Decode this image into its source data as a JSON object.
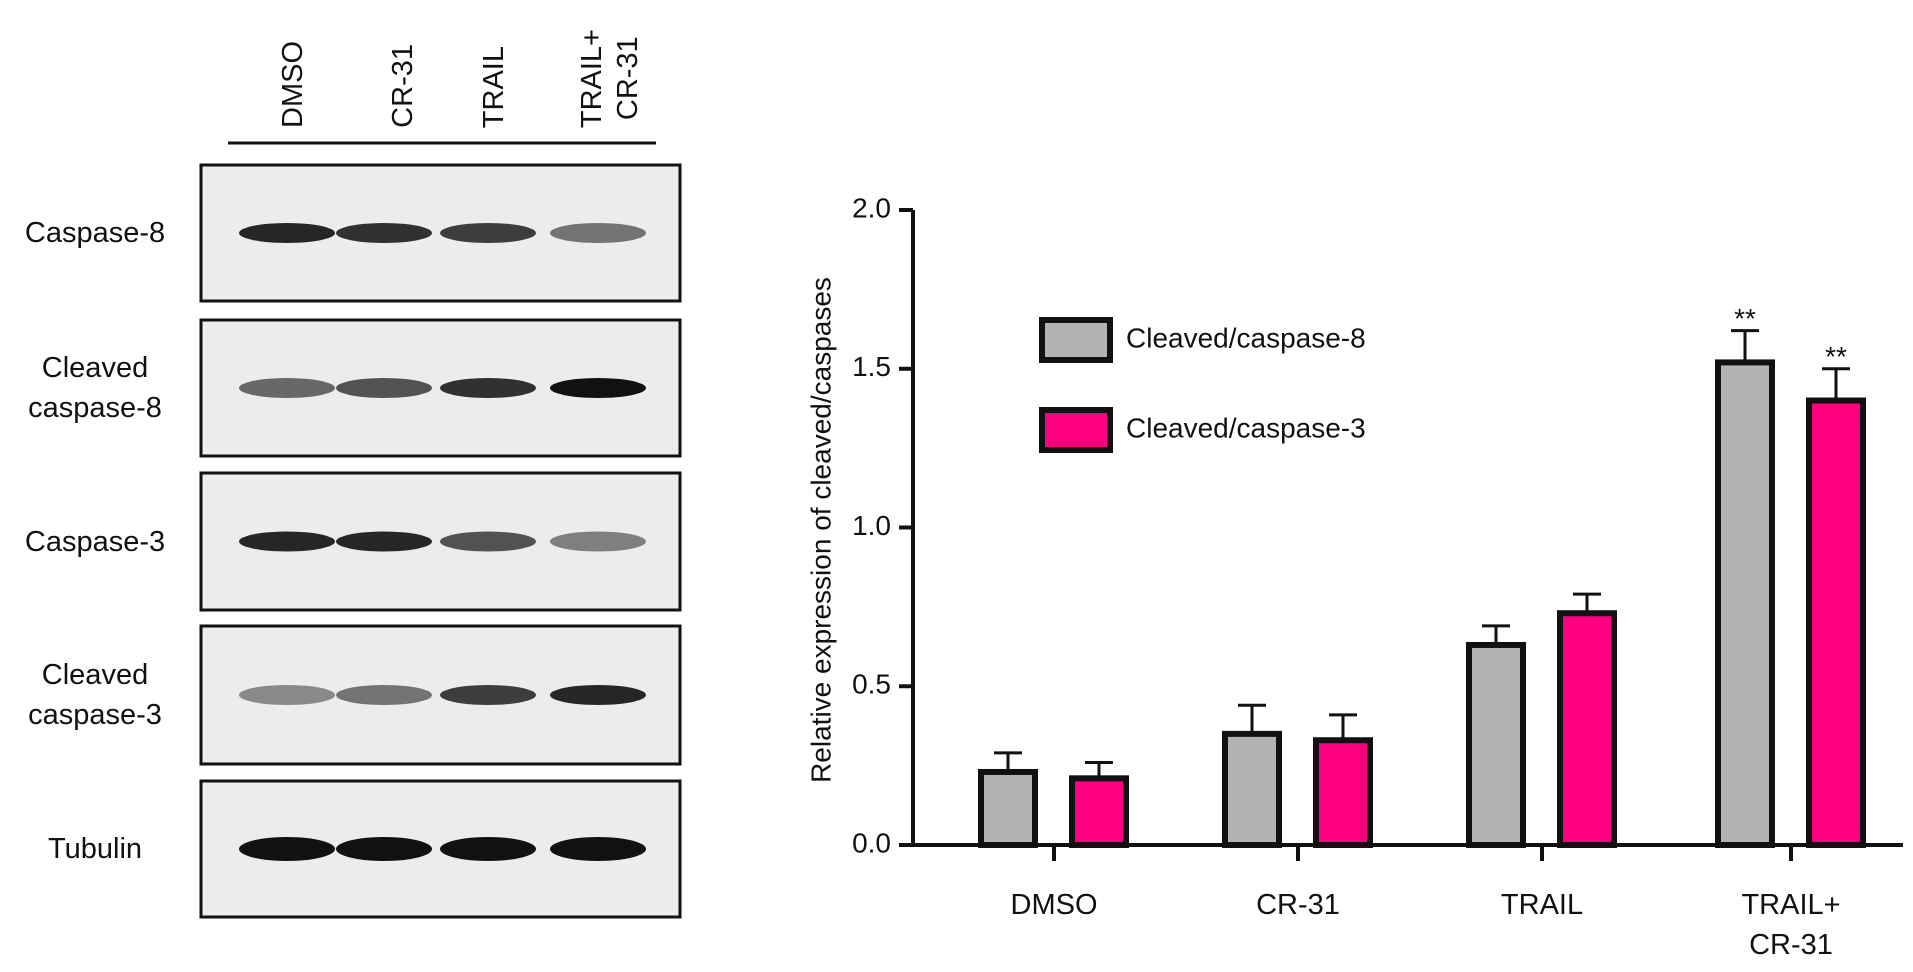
{
  "blot": {
    "lanes": [
      "DMSO",
      "CR-31",
      "TRAIL",
      "TRAIL+\nCR-31"
    ],
    "rows": [
      "Caspase-8",
      "Cleaved\ncaspase-8",
      "Caspase-3",
      "Cleaved\ncaspase-3",
      "Tubulin"
    ]
  },
  "chart_data": {
    "type": "bar",
    "y_label": "Relative expression of cleaved/caspases",
    "categories": [
      "DMSO",
      "CR-31",
      "TRAIL",
      "TRAIL+\nCR-31"
    ],
    "series": [
      {
        "name": "Cleaved/caspase-8",
        "color": "#b3b3b3",
        "values": [
          0.23,
          0.35,
          0.63,
          1.52
        ],
        "errors": [
          0.06,
          0.09,
          0.06,
          0.1
        ],
        "annotations": [
          null,
          null,
          null,
          "**"
        ]
      },
      {
        "name": "Cleaved/caspase-3",
        "color": "#ff0080",
        "values": [
          0.21,
          0.33,
          0.73,
          1.4
        ],
        "errors": [
          0.05,
          0.08,
          0.06,
          0.1
        ],
        "annotations": [
          null,
          null,
          null,
          "**"
        ]
      }
    ],
    "ylim": [
      0,
      2
    ],
    "yticks": [
      {
        "value": 0,
        "label": "0.0"
      },
      {
        "value": 0.5,
        "label": "0.5"
      },
      {
        "value": 1,
        "label": "1.0"
      },
      {
        "value": 1.5,
        "label": "1.5"
      },
      {
        "value": 2,
        "label": "2.0"
      }
    ]
  }
}
